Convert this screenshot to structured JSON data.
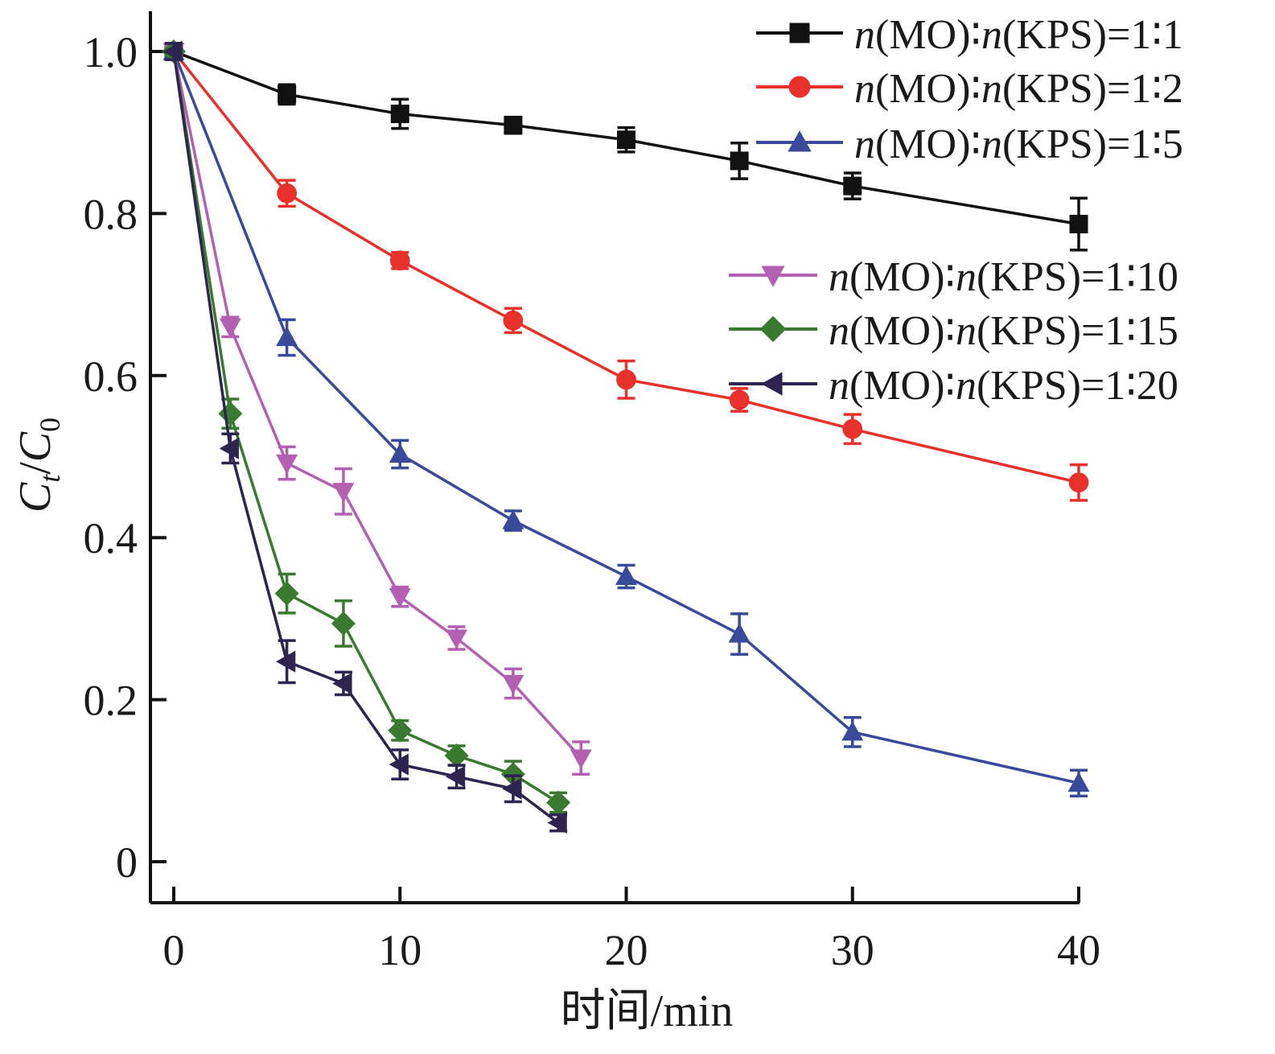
{
  "chart_data": {
    "type": "line",
    "xlabel": "时间/min",
    "ylabel": "Ct/C0",
    "xlim": [
      -1,
      40.5
    ],
    "ylim": [
      -0.05,
      1.05
    ],
    "xticks": [
      0,
      10,
      20,
      30,
      40
    ],
    "yticks": [
      0,
      0.2,
      0.4,
      0.6,
      0.8,
      1.0
    ],
    "ytick_labels": [
      "0",
      "0.2",
      "0.4",
      "0.6",
      "0.8",
      "1.0"
    ],
    "grid": false,
    "legend_placement": "top-right",
    "series": [
      {
        "name": "n(MO)∶n(KPS)=1∶1",
        "color": "#111111",
        "marker": "square",
        "x": [
          0,
          5,
          10,
          15,
          20,
          25,
          30,
          40
        ],
        "y": [
          1.0,
          0.947,
          0.923,
          0.909,
          0.891,
          0.865,
          0.834,
          0.787
        ],
        "err": [
          0.01,
          0.012,
          0.018,
          0.01,
          0.015,
          0.022,
          0.016,
          0.032
        ]
      },
      {
        "name": "n(MO)∶n(KPS)=1∶2",
        "color": "#e8312a",
        "marker": "circle",
        "x": [
          0,
          5,
          10,
          15,
          20,
          25,
          30,
          40
        ],
        "y": [
          1.0,
          0.825,
          0.742,
          0.668,
          0.595,
          0.57,
          0.534,
          0.468
        ],
        "err": [
          0.01,
          0.016,
          0.01,
          0.015,
          0.023,
          0.014,
          0.018,
          0.022
        ]
      },
      {
        "name": "n(MO)∶n(KPS)=1∶5",
        "color": "#3a4a9a",
        "marker": "triangle-up",
        "x": [
          0,
          5,
          10,
          15,
          20,
          25,
          30,
          40
        ],
        "y": [
          1.0,
          0.647,
          0.503,
          0.421,
          0.352,
          0.281,
          0.16,
          0.097
        ],
        "err": [
          0.01,
          0.022,
          0.017,
          0.012,
          0.014,
          0.025,
          0.018,
          0.016
        ]
      },
      {
        "name": "n(MO)∶n(KPS)=1∶10",
        "color": "#b360b3",
        "marker": "triangle-down",
        "x": [
          0,
          2.5,
          5,
          7.5,
          10,
          12.5,
          15,
          18
        ],
        "y": [
          1.0,
          0.66,
          0.492,
          0.457,
          0.327,
          0.276,
          0.22,
          0.128
        ],
        "err": [
          0.01,
          0.012,
          0.02,
          0.028,
          0.012,
          0.014,
          0.018,
          0.02
        ]
      },
      {
        "name": "n(MO)∶n(KPS)=1∶15",
        "color": "#3a7a30",
        "marker": "diamond",
        "x": [
          0,
          2.5,
          5,
          7.5,
          10,
          12.5,
          15,
          17
        ],
        "y": [
          1.0,
          0.553,
          0.331,
          0.294,
          0.162,
          0.131,
          0.108,
          0.073
        ],
        "err": [
          0.01,
          0.018,
          0.024,
          0.028,
          0.012,
          0.012,
          0.016,
          0.012
        ]
      },
      {
        "name": "n(MO)∶n(KPS)=1∶20",
        "color": "#2e2450",
        "marker": "triangle-left",
        "x": [
          0,
          2.5,
          5,
          7.5,
          10,
          12.5,
          15,
          17
        ],
        "y": [
          1.0,
          0.51,
          0.247,
          0.22,
          0.12,
          0.105,
          0.09,
          0.048
        ],
        "err": [
          0.01,
          0.018,
          0.026,
          0.014,
          0.018,
          0.014,
          0.016,
          0.01
        ]
      }
    ]
  }
}
